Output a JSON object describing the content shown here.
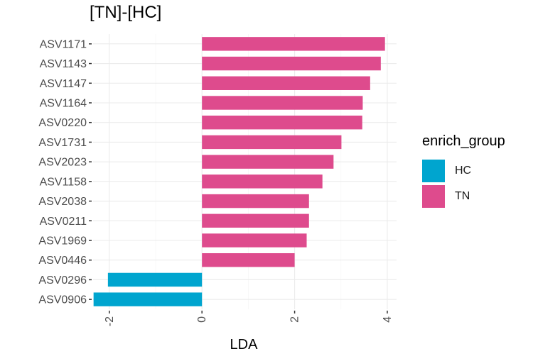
{
  "chart_data": {
    "type": "bar",
    "orientation": "horizontal",
    "title": "[TN]-[HC]",
    "xlabel": "LDA",
    "ylabel": "",
    "xlim": [
      -2.35,
      4.2
    ],
    "xticks": [
      -2,
      0,
      2,
      4
    ],
    "grid": true,
    "legend": {
      "title": "enrich_group",
      "placement": "right",
      "entries": [
        {
          "name": "HC",
          "color": "#00A5CF"
        },
        {
          "name": "TN",
          "color": "#DE4B8D"
        }
      ]
    },
    "categories": [
      "ASV1171",
      "ASV1143",
      "ASV1147",
      "ASV1164",
      "ASV0220",
      "ASV1731",
      "ASV2023",
      "ASV1158",
      "ASV2038",
      "ASV0211",
      "ASV1969",
      "ASV0446",
      "ASV0296",
      "ASV0906"
    ],
    "values": [
      3.95,
      3.86,
      3.63,
      3.47,
      3.46,
      3.01,
      2.84,
      2.6,
      2.31,
      2.31,
      2.26,
      2.0,
      -2.03,
      -2.34
    ],
    "groups": [
      "TN",
      "TN",
      "TN",
      "TN",
      "TN",
      "TN",
      "TN",
      "TN",
      "TN",
      "TN",
      "TN",
      "TN",
      "HC",
      "HC"
    ]
  }
}
